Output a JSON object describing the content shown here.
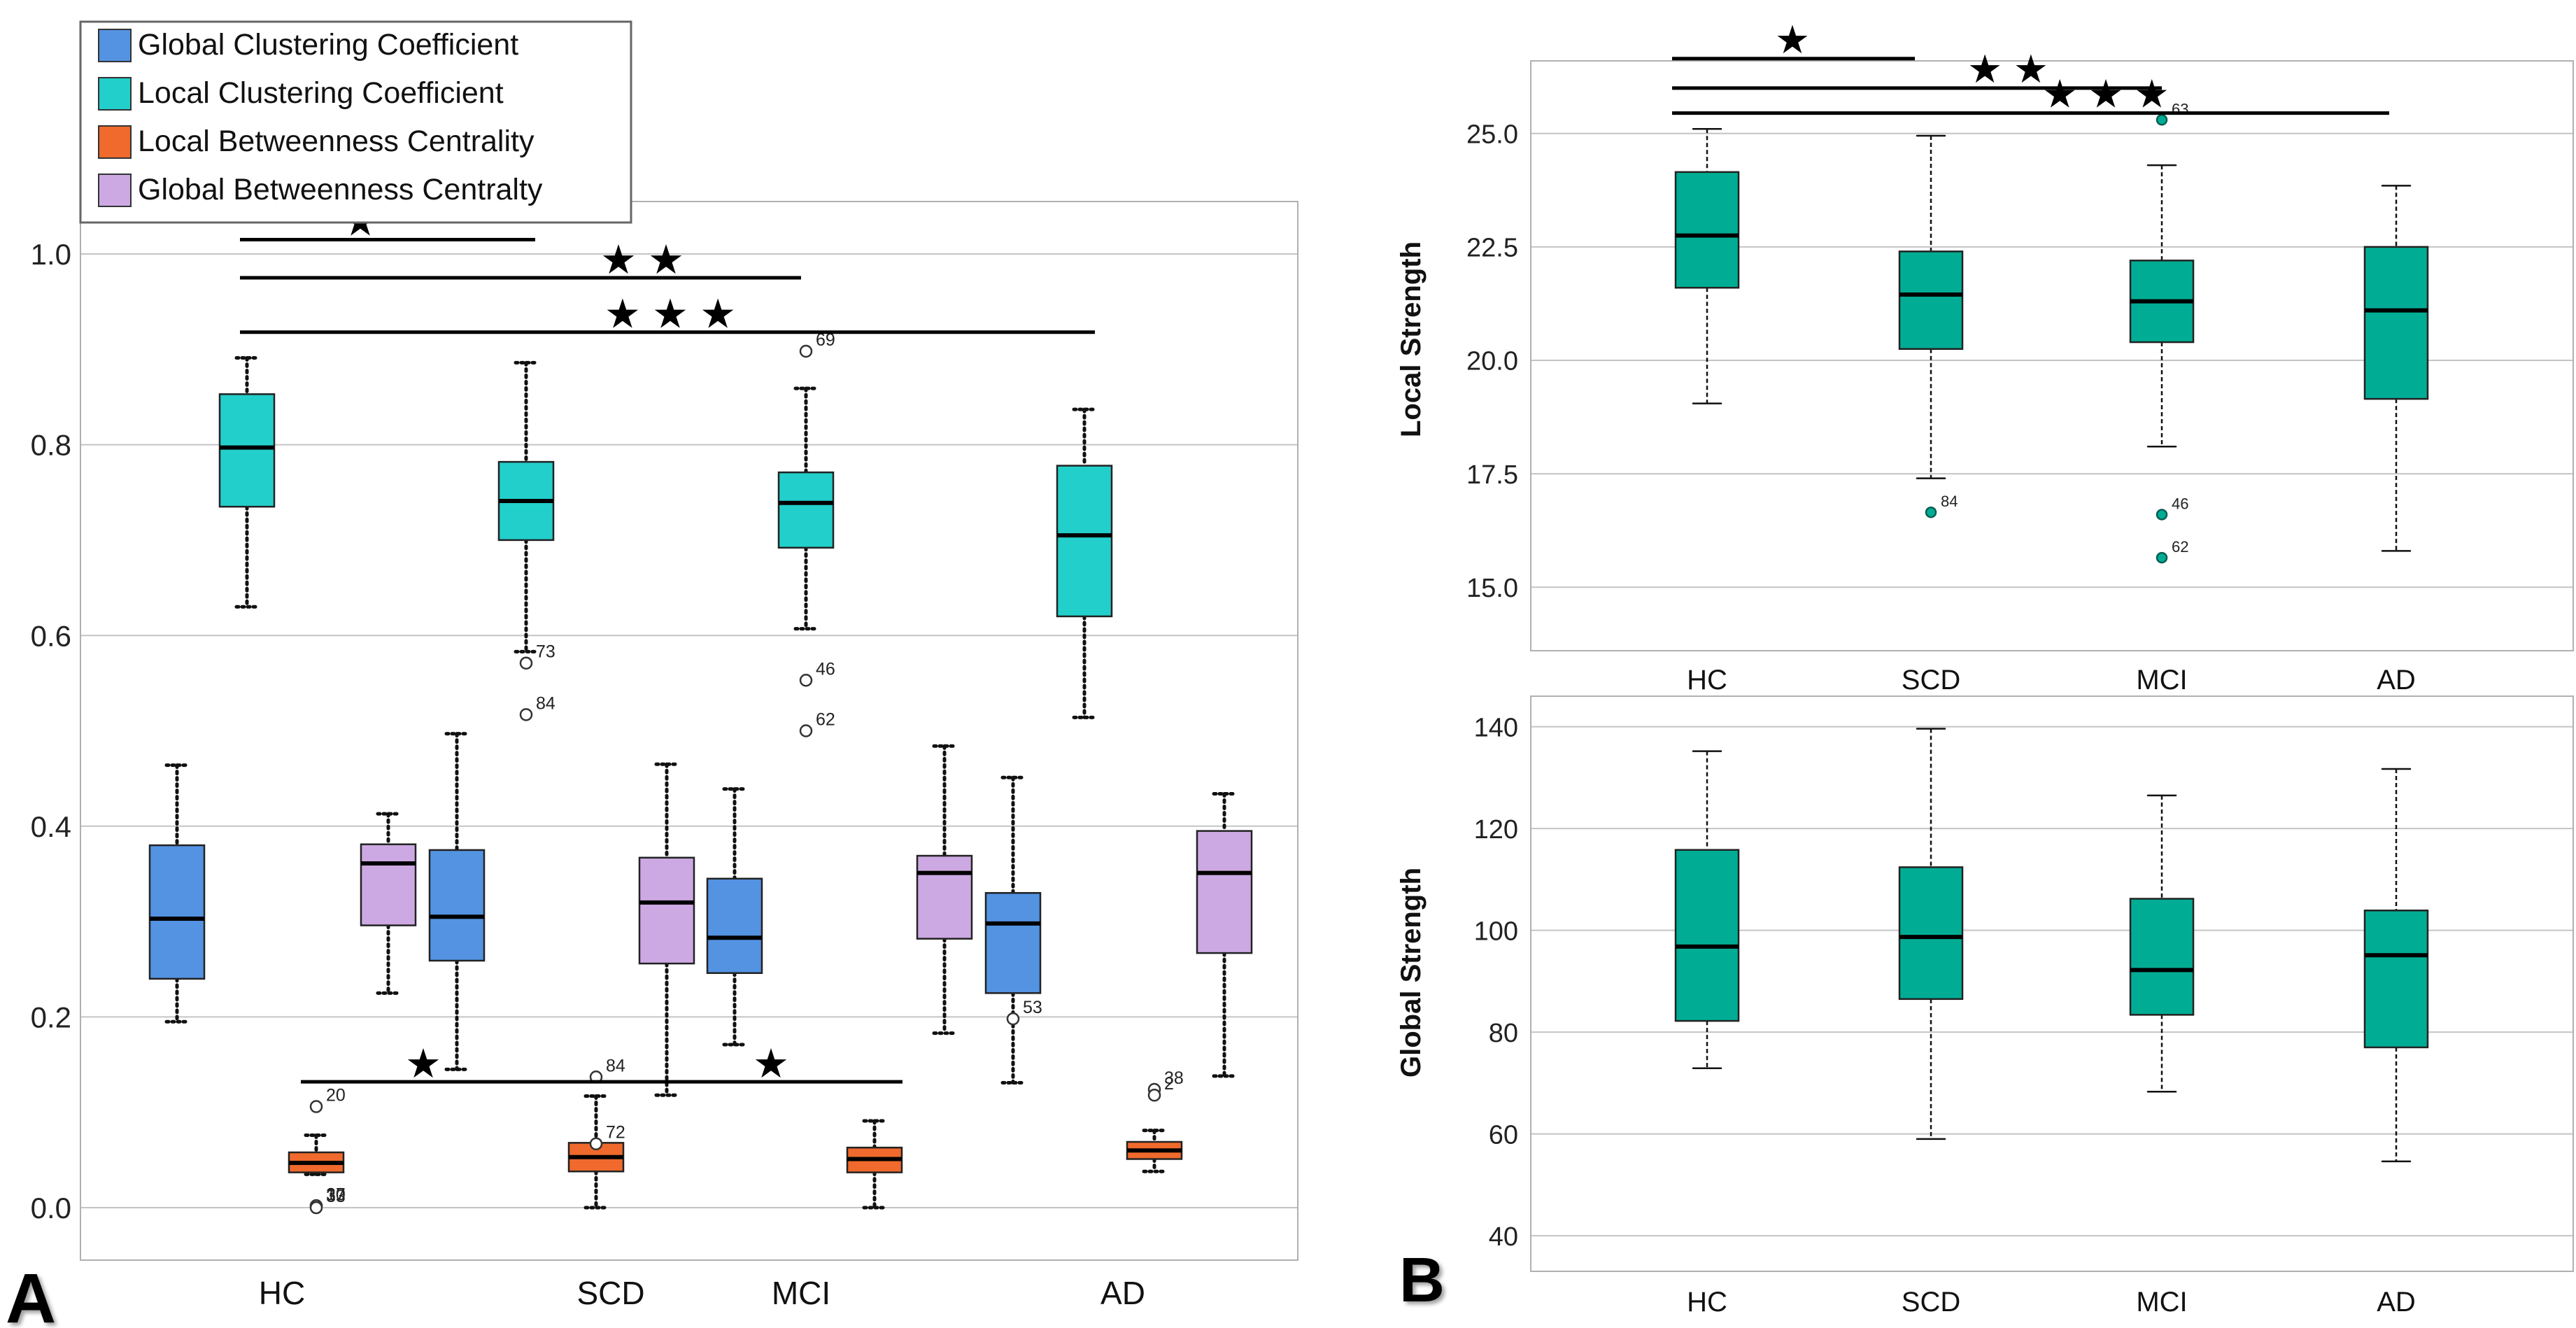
{
  "figure": {
    "panel_labels": [
      "A",
      "B"
    ]
  },
  "chart_data": [
    {
      "id": "A",
      "type": "boxplot",
      "categories": [
        "HC",
        "SCD",
        "MCI",
        "AD"
      ],
      "ylim": [
        -0.055,
        1.055
      ],
      "yticks": [
        "0.0",
        "0.2",
        "0.4",
        "0.6",
        "0.8",
        "1.0"
      ],
      "ytick_values": [
        0,
        0.2,
        0.4,
        0.6,
        0.8,
        1.0
      ],
      "grid": true,
      "legend_position": "top-left",
      "series": [
        {
          "name": "Global Clustering Coefficient",
          "color": "#5393e2",
          "offset": -0.28,
          "boxes": [
            {
              "q1": 0.24,
              "median": 0.303,
              "q3": 0.38,
              "whislo": 0.195,
              "whishi": 0.464,
              "outliers": []
            },
            {
              "q1": 0.259,
              "median": 0.305,
              "q3": 0.375,
              "whislo": 0.145,
              "whishi": 0.497,
              "outliers": []
            },
            {
              "q1": 0.246,
              "median": 0.283,
              "q3": 0.345,
              "whislo": 0.171,
              "whishi": 0.439,
              "outliers": []
            },
            {
              "q1": 0.225,
              "median": 0.298,
              "q3": 0.33,
              "whislo": 0.131,
              "whishi": 0.451,
              "outliers": [
                {
                  "value": 0.198,
                  "label": "53"
                }
              ]
            }
          ]
        },
        {
          "name": "Local Clustering Coefficient",
          "color": "#22cfcb",
          "offset": 0,
          "boxes": [
            {
              "q1": 0.735,
              "median": 0.797,
              "q3": 0.853,
              "whislo": 0.63,
              "whishi": 0.891,
              "outliers": []
            },
            {
              "q1": 0.7,
              "median": 0.741,
              "q3": 0.782,
              "whislo": 0.583,
              "whishi": 0.886,
              "outliers": [
                {
                  "value": 0.571,
                  "label": "73"
                },
                {
                  "value": 0.517,
                  "label": "84"
                }
              ]
            },
            {
              "q1": 0.692,
              "median": 0.739,
              "q3": 0.771,
              "whislo": 0.607,
              "whishi": 0.859,
              "outliers": [
                {
                  "value": 0.898,
                  "label": "69"
                },
                {
                  "value": 0.553,
                  "label": "46"
                },
                {
                  "value": 0.5,
                  "label": "62"
                }
              ]
            },
            {
              "q1": 0.62,
              "median": 0.705,
              "q3": 0.778,
              "whislo": 0.514,
              "whishi": 0.837,
              "outliers": []
            }
          ]
        },
        {
          "name": "Local Betweenness Centrality",
          "color": "#ef6a2c",
          "offset": 0,
          "boxes": [
            {
              "q1": 0.037,
              "median": 0.047,
              "q3": 0.058,
              "whislo": 0.035,
              "whishi": 0.076,
              "outliers": [
                {
                  "value": 0.106,
                  "label": "20"
                },
                {
                  "value": 0.002,
                  "label": "30"
                },
                {
                  "value": 0.002,
                  "label": "17"
                },
                {
                  "value": 0.0,
                  "label": "33"
                }
              ]
            },
            {
              "q1": 0.038,
              "median": 0.053,
              "q3": 0.068,
              "whislo": 0.0,
              "whishi": 0.117,
              "outliers": [
                {
                  "value": 0.137,
                  "label": "84"
                },
                {
                  "value": 0.067,
                  "label": "72"
                }
              ]
            },
            {
              "q1": 0.037,
              "median": 0.051,
              "q3": 0.063,
              "whislo": 0.0,
              "whishi": 0.091,
              "outliers": []
            },
            {
              "q1": 0.051,
              "median": 0.06,
              "q3": 0.069,
              "whislo": 0.038,
              "whishi": 0.081,
              "outliers": [
                {
                  "value": 0.124,
                  "label": "38"
                },
                {
                  "value": 0.118,
                  "label": "2"
                }
              ]
            }
          ]
        },
        {
          "name": "Global Betweenness Centralty",
          "color": "#cda9e3",
          "offset": 0.28,
          "boxes": [
            {
              "q1": 0.296,
              "median": 0.361,
              "q3": 0.381,
              "whislo": 0.225,
              "whishi": 0.413,
              "outliers": []
            },
            {
              "q1": 0.256,
              "median": 0.32,
              "q3": 0.367,
              "whislo": 0.118,
              "whishi": 0.465,
              "outliers": []
            },
            {
              "q1": 0.282,
              "median": 0.351,
              "q3": 0.369,
              "whislo": 0.183,
              "whishi": 0.484,
              "outliers": []
            },
            {
              "q1": 0.267,
              "median": 0.351,
              "q3": 0.395,
              "whislo": 0.138,
              "whishi": 0.434,
              "outliers": []
            }
          ]
        }
      ],
      "significance": [
        {
          "from": 0,
          "to": 1,
          "stars": "★",
          "y": 1.015
        },
        {
          "from": 0,
          "to": 2,
          "stars": "★ ★",
          "y": 0.975
        },
        {
          "from": 0,
          "to": 3,
          "stars": "★ ★ ★",
          "y": 0.918
        },
        {
          "from": 0,
          "to": 2,
          "stars": "★ ★",
          "y": 0.132,
          "star_positions": [
            0.6,
            1.65
          ]
        }
      ]
    },
    {
      "id": "B-top",
      "type": "boxplot",
      "categories": [
        "HC",
        "SCD",
        "MCI",
        "AD"
      ],
      "ylabel": "Local Strength",
      "ylim": [
        13.6,
        26.6
      ],
      "yticks": [
        "15.0",
        "17.5",
        "20.0",
        "22.5",
        "25.0"
      ],
      "ytick_values": [
        15,
        17.5,
        20,
        22.5,
        25
      ],
      "color": "#00ad94",
      "boxes": [
        {
          "q1": 21.6,
          "median": 22.75,
          "q3": 24.15,
          "whislo": 19.05,
          "whishi": 25.1,
          "outliers": []
        },
        {
          "q1": 20.25,
          "median": 21.45,
          "q3": 22.4,
          "whislo": 17.4,
          "whishi": 24.95,
          "outliers": [
            {
              "value": 16.65,
              "label": "84"
            }
          ]
        },
        {
          "q1": 20.4,
          "median": 21.3,
          "q3": 22.2,
          "whislo": 18.1,
          "whishi": 24.3,
          "outliers": [
            {
              "value": 25.3,
              "label": "63"
            },
            {
              "value": 16.6,
              "label": "46"
            },
            {
              "value": 15.65,
              "label": "62"
            }
          ]
        },
        {
          "q1": 19.15,
          "median": 21.1,
          "q3": 22.5,
          "whislo": 15.8,
          "whishi": 23.85,
          "outliers": []
        }
      ],
      "significance": [
        {
          "from": 0,
          "to": 1,
          "stars": "★",
          "y": 26.65
        },
        {
          "from": 0,
          "to": 2,
          "stars": "★ ★",
          "y": 26.0
        },
        {
          "from": 0,
          "to": 3,
          "stars": "★ ★ ★",
          "y": 25.45
        }
      ]
    },
    {
      "id": "B-bottom",
      "type": "boxplot",
      "categories": [
        "HC",
        "SCD",
        "MCI",
        "AD"
      ],
      "ylabel": "Global Strength",
      "ylim": [
        33,
        146
      ],
      "yticks": [
        "40",
        "60",
        "80",
        "100",
        "120",
        "140"
      ],
      "ytick_values": [
        40,
        60,
        80,
        100,
        120,
        140
      ],
      "color": "#00ad94",
      "boxes": [
        {
          "q1": 82.2,
          "median": 96.8,
          "q3": 115.8,
          "whislo": 72.9,
          "whishi": 135.2,
          "outliers": []
        },
        {
          "q1": 86.5,
          "median": 98.7,
          "q3": 112.4,
          "whislo": 59.0,
          "whishi": 139.6,
          "outliers": []
        },
        {
          "q1": 83.4,
          "median": 92.2,
          "q3": 106.2,
          "whislo": 68.3,
          "whishi": 126.5,
          "outliers": []
        },
        {
          "q1": 77.0,
          "median": 95.1,
          "q3": 103.9,
          "whislo": 54.6,
          "whishi": 131.7,
          "outliers": []
        }
      ]
    }
  ]
}
